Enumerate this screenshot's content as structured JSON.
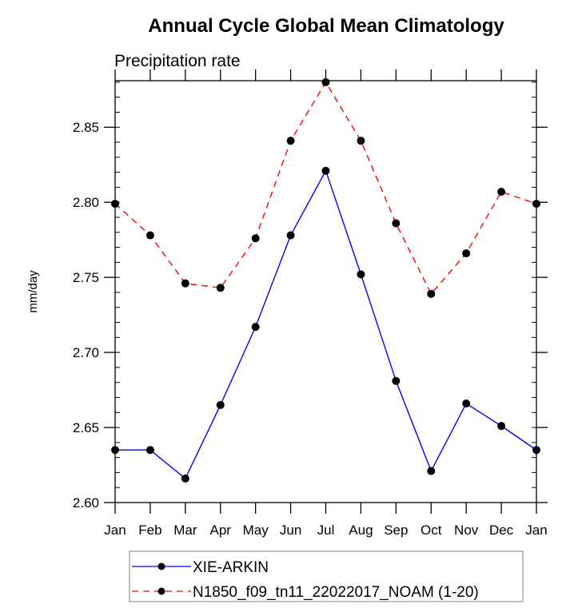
{
  "chart_data": {
    "type": "line",
    "title": "Annual Cycle Global Mean Climatology",
    "subtitle": "Precipitation rate",
    "xlabel": "",
    "ylabel": "mm/day",
    "categories": [
      "Jan",
      "Feb",
      "Mar",
      "Apr",
      "May",
      "Jun",
      "Jul",
      "Aug",
      "Sep",
      "Oct",
      "Nov",
      "Dec",
      "Jan"
    ],
    "ylim": [
      2.6,
      2.881
    ],
    "yticks": [
      2.6,
      2.65,
      2.7,
      2.75,
      2.8,
      2.85
    ],
    "ytick_labels": [
      "2.60",
      "2.65",
      "2.70",
      "2.75",
      "2.80",
      "2.85"
    ],
    "y_minor_step": 0.01,
    "grid": false,
    "legend_position": "bottom",
    "series": [
      {
        "name": "XIE-ARKIN",
        "color": "#0000ff",
        "dash": "solid",
        "marker": "filled-circle",
        "values": [
          2.635,
          2.635,
          2.616,
          2.665,
          2.717,
          2.778,
          2.821,
          2.752,
          2.681,
          2.621,
          2.666,
          2.651,
          2.635
        ]
      },
      {
        "name": "N1850_f09_tn11_22022017_NOAM (1-20)",
        "color": "#ff0000",
        "dash": "dashed",
        "marker": "filled-circle",
        "values": [
          2.799,
          2.778,
          2.746,
          2.743,
          2.776,
          2.841,
          2.88,
          2.841,
          2.786,
          2.739,
          2.766,
          2.807,
          2.799
        ]
      }
    ]
  }
}
